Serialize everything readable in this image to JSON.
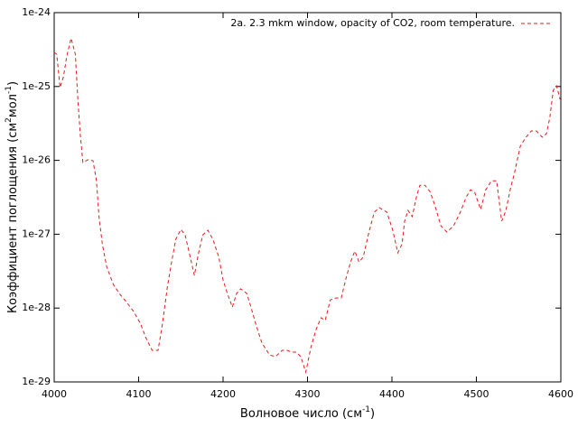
{
  "chart_data": {
    "type": "line",
    "xlabel": [
      "Волновое число (см",
      "-1",
      ")"
    ],
    "ylabel": [
      "Коэффициент поглощения (см",
      "2",
      "мол",
      "-1",
      ")"
    ],
    "x": [
      4000,
      4003,
      4007,
      4011,
      4015,
      4020,
      4025,
      4028,
      4031,
      4034,
      4040,
      4046,
      4050,
      4053,
      4057,
      4062,
      4070,
      4077,
      4086,
      4094,
      4102,
      4109,
      4116,
      4123,
      4128,
      4134,
      4139,
      4144,
      4150,
      4155,
      4160,
      4166,
      4171,
      4176,
      4182,
      4188,
      4195,
      4200,
      4205,
      4211,
      4216,
      4221,
      4228,
      4233,
      4239,
      4246,
      4255,
      4262,
      4270,
      4276,
      4281,
      4287,
      4292,
      4298,
      4304,
      4310,
      4316,
      4321,
      4327,
      4334,
      4340,
      4345,
      4351,
      4356,
      4361,
      4366,
      4372,
      4379,
      4385,
      4394,
      4401,
      4407,
      4412,
      4415,
      4419,
      4424,
      4429,
      4433,
      4439,
      4445,
      4451,
      4458,
      4465,
      4473,
      4481,
      4488,
      4493,
      4498,
      4505,
      4511,
      4518,
      4524,
      4530,
      4535,
      4540,
      4545,
      4552,
      4558,
      4565,
      4571,
      4578,
      4583,
      4587,
      4591,
      4595,
      4599
    ],
    "series": [
      {
        "name": "2a. 2.3 mkm window, opacity of CO2, room temperature.",
        "color": "#e41a1c",
        "values": [
          2.9e-25,
          2.74e-25,
          9.7e-26,
          1.36e-25,
          2.59e-25,
          4.5e-25,
          2.74e-25,
          6.7e-26,
          2.17e-26,
          9.35e-27,
          1.02e-26,
          9.9e-27,
          5.3e-27,
          1.73e-27,
          7.4e-28,
          3.67e-28,
          2.09e-28,
          1.58e-28,
          1.19e-28,
          9e-29,
          6.2e-29,
          3.87e-29,
          2.68e-29,
          2.68e-29,
          5.9e-29,
          1.92e-28,
          4.2e-28,
          8.5e-28,
          1.16e-27,
          9.8e-28,
          5.6e-28,
          2.77e-28,
          5.6e-28,
          9.8e-28,
          1.13e-27,
          8.5e-28,
          4.9e-28,
          2.4e-28,
          1.58e-28,
          1.03e-28,
          1.58e-28,
          1.82e-28,
          1.58e-28,
          1.03e-28,
          5.9e-29,
          3.36e-29,
          2.33e-29,
          2.2e-29,
          2.68e-29,
          2.68e-29,
          2.53e-29,
          2.53e-29,
          2.2e-29,
          1.36e-29,
          2.92e-29,
          5.1e-29,
          7.4e-29,
          6.8e-29,
          1.29e-28,
          1.37e-28,
          1.37e-28,
          2.4e-28,
          4.2e-28,
          5.9e-28,
          4.2e-28,
          4.9e-28,
          9.8e-28,
          1.99e-27,
          2.29e-27,
          1.99e-27,
          1.13e-27,
          5.6e-28,
          7.4e-28,
          1.5e-27,
          2.1e-27,
          1.73e-27,
          3.2e-27,
          4.6e-27,
          4.6e-27,
          3.8e-27,
          2.42e-27,
          1.3e-27,
          1.07e-27,
          1.3e-27,
          1.99e-27,
          3.2e-27,
          4e-27,
          3.7e-27,
          2.16e-27,
          4e-27,
          5.3e-27,
          5.3e-27,
          1.5e-27,
          2.1e-27,
          4e-27,
          6.7e-27,
          1.55e-26,
          2e-26,
          2.5e-26,
          2.5e-26,
          2.06e-26,
          2.3e-26,
          3.8e-26,
          8.9e-26,
          1.02e-25,
          6.7e-26
        ]
      }
    ],
    "xlim": [
      4000,
      4600
    ],
    "xticks": [
      4000,
      4100,
      4200,
      4300,
      4400,
      4500,
      4600
    ],
    "ylim": [
      1e-29,
      1e-24
    ],
    "log_y": true,
    "yticks": [
      {
        "value": 1e-29,
        "label": "1e-29"
      },
      {
        "value": 1e-28,
        "label": "1e-28"
      },
      {
        "value": 1e-27,
        "label": "1e-27"
      },
      {
        "value": 1e-26,
        "label": "1e-26"
      },
      {
        "value": 1e-25,
        "label": "1e-25"
      },
      {
        "value": 1e-24,
        "label": "1e-24"
      }
    ],
    "grid": false,
    "legend": "top-right"
  }
}
